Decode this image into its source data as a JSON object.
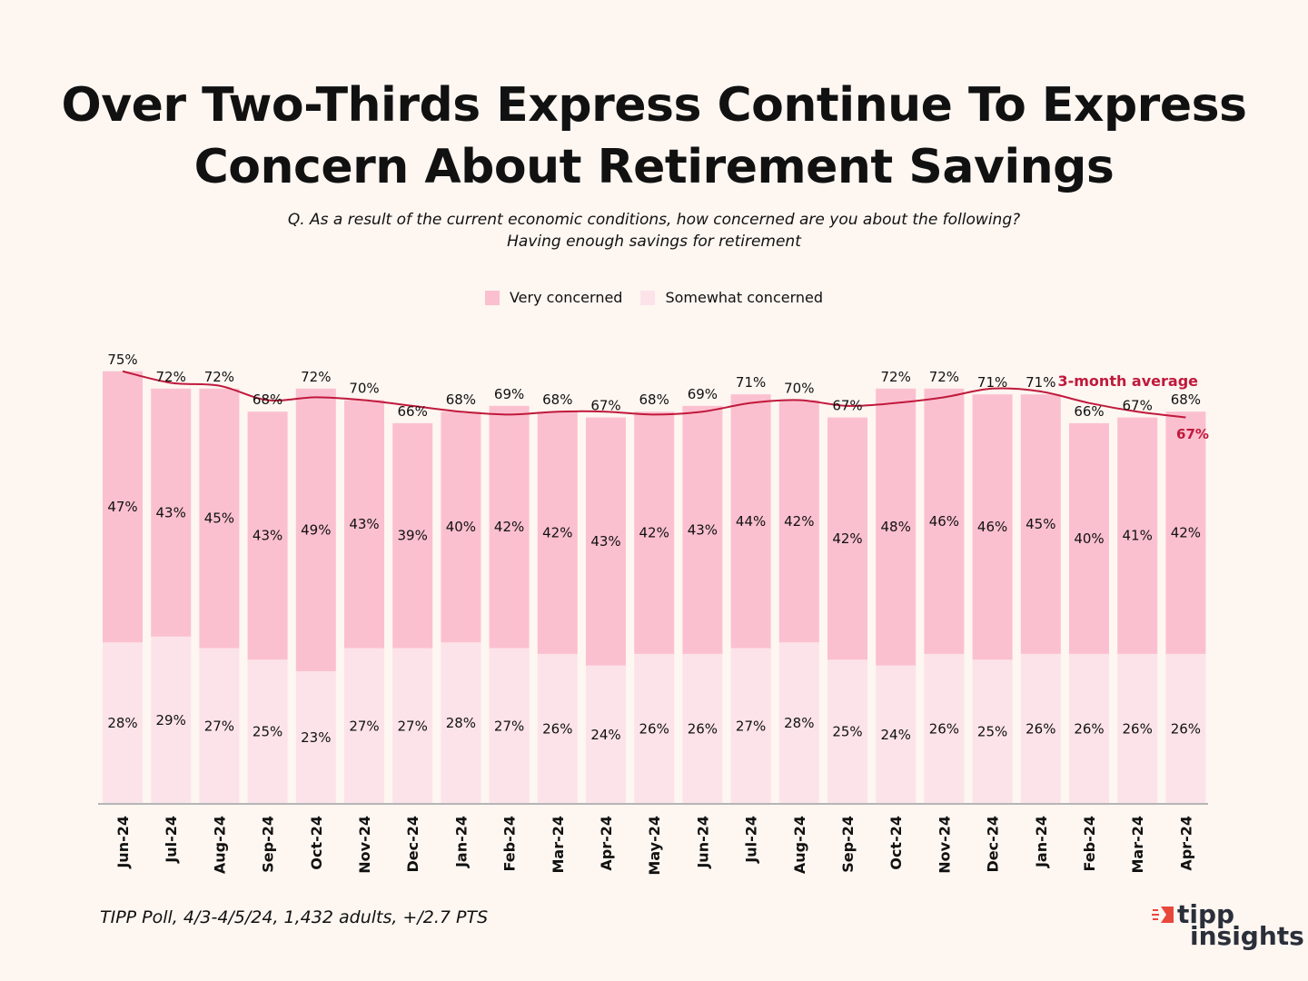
{
  "title_line1": "Over Two-Thirds Express Continue To Express",
  "title_line2": "Concern About Retirement Savings",
  "subtitle_line1": "Q. As a result of the current economic conditions, how concerned are you about the following?",
  "subtitle_line2": "Having enough savings for retirement",
  "legend": {
    "very": "Very concerned",
    "somewhat": "Somewhat concerned"
  },
  "footer": "TIPP Poll, 4/3-4/5/24, 1,432 adults, +/2.7 PTS",
  "logo": {
    "top": "tipp",
    "bottom": "insights"
  },
  "colors": {
    "background": "#fdf6f1",
    "very": "#fbc0cf",
    "somewhat": "#fce3ea",
    "average_line": "#c0193c",
    "axis": "#b5b5b5",
    "logo_mark": "#e8473c"
  },
  "chart_data": {
    "type": "bar",
    "stacked": true,
    "categories": [
      "Jun-24",
      "Jul-24",
      "Aug-24",
      "Sep-24",
      "Oct-24",
      "Nov-24",
      "Dec-24",
      "Jan-24",
      "Feb-24",
      "Mar-24",
      "Apr-24",
      "May-24",
      "Jun-24",
      "Jul-24",
      "Aug-24",
      "Sep-24",
      "Oct-24",
      "Nov-24",
      "Dec-24",
      "Jan-24",
      "Feb-24",
      "Mar-24",
      "Apr-24"
    ],
    "series": [
      {
        "name": "Somewhat concerned",
        "values": [
          28,
          29,
          27,
          25,
          23,
          27,
          27,
          28,
          27,
          26,
          24,
          26,
          26,
          27,
          28,
          25,
          24,
          26,
          25,
          26,
          26,
          26,
          26
        ]
      },
      {
        "name": "Very concerned",
        "values": [
          47,
          43,
          45,
          43,
          49,
          43,
          39,
          40,
          42,
          42,
          43,
          42,
          43,
          44,
          42,
          42,
          48,
          46,
          46,
          45,
          40,
          41,
          42
        ]
      }
    ],
    "totals": [
      75,
      72,
      72,
      68,
      72,
      70,
      66,
      68,
      69,
      68,
      67,
      68,
      69,
      71,
      70,
      67,
      72,
      72,
      71,
      71,
      66,
      67,
      68
    ],
    "average_line": {
      "name": "3-month average",
      "values": [
        75,
        73,
        72.5,
        70,
        70.5,
        70,
        69,
        68,
        67.5,
        68,
        68,
        67.5,
        68,
        69.5,
        70,
        69,
        69.5,
        70.5,
        72,
        71.5,
        69.5,
        68,
        67
      ],
      "end_label": "67%"
    },
    "value_suffix": "%",
    "ylim": [
      0,
      75
    ],
    "legend_position": "top-center"
  }
}
